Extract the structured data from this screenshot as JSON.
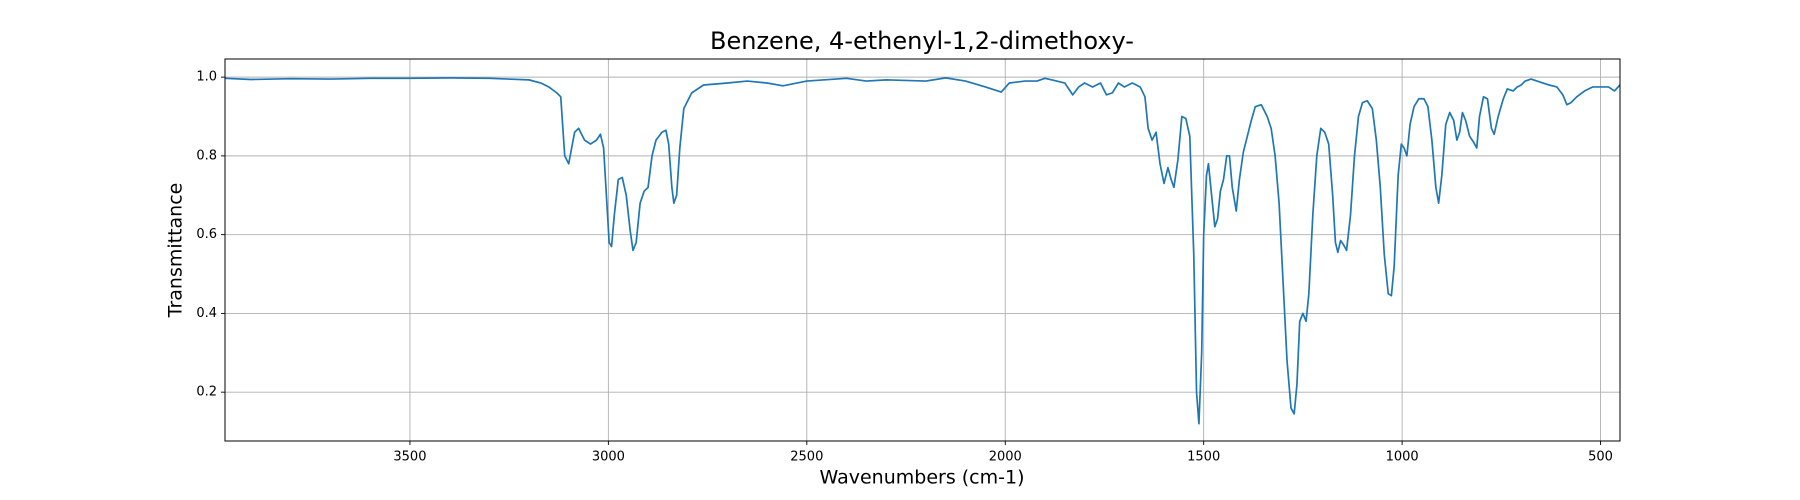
{
  "chart_data": {
    "type": "line",
    "title": "Benzene, 4-ethenyl-1,2-dimethoxy-",
    "xlabel": "Wavenumbers (cm-1)",
    "ylabel": "Transmittance",
    "color": "#1f77b4",
    "grid": true,
    "xlim": [
      3966,
      451
    ],
    "ylim": [
      0.076,
      1.046
    ],
    "xticks": [
      3500,
      3000,
      2500,
      2000,
      1500,
      1000,
      500
    ],
    "yticks": [
      0.2,
      0.4,
      0.6,
      0.8,
      {
        "value": 1,
        "label": "1.0"
      }
    ],
    "x": [
      3966,
      3900,
      3800,
      3700,
      3600,
      3500,
      3400,
      3300,
      3200,
      3170,
      3150,
      3130,
      3120,
      3110,
      3100,
      3085,
      3075,
      3060,
      3045,
      3030,
      3020,
      3012,
      3005,
      2998,
      2992,
      2985,
      2975,
      2965,
      2955,
      2945,
      2938,
      2930,
      2920,
      2910,
      2900,
      2890,
      2880,
      2865,
      2855,
      2848,
      2840,
      2835,
      2828,
      2820,
      2810,
      2790,
      2760,
      2700,
      2650,
      2600,
      2560,
      2500,
      2400,
      2350,
      2300,
      2200,
      2150,
      2100,
      2050,
      2010,
      1990,
      1950,
      1920,
      1900,
      1870,
      1850,
      1830,
      1815,
      1800,
      1780,
      1760,
      1745,
      1730,
      1715,
      1700,
      1680,
      1660,
      1648,
      1640,
      1630,
      1620,
      1610,
      1600,
      1590,
      1582,
      1575,
      1565,
      1555,
      1545,
      1535,
      1525,
      1518,
      1512,
      1505,
      1500,
      1493,
      1488,
      1480,
      1472,
      1465,
      1458,
      1450,
      1442,
      1435,
      1428,
      1418,
      1410,
      1400,
      1390,
      1380,
      1370,
      1355,
      1340,
      1330,
      1320,
      1310,
      1300,
      1290,
      1280,
      1272,
      1265,
      1258,
      1250,
      1242,
      1235,
      1225,
      1215,
      1205,
      1195,
      1185,
      1175,
      1168,
      1162,
      1155,
      1148,
      1140,
      1130,
      1120,
      1110,
      1100,
      1088,
      1075,
      1065,
      1055,
      1045,
      1035,
      1027,
      1020,
      1010,
      1002,
      995,
      988,
      980,
      970,
      958,
      945,
      935,
      925,
      915,
      908,
      900,
      890,
      880,
      870,
      862,
      855,
      848,
      840,
      830,
      820,
      812,
      805,
      795,
      785,
      775,
      768,
      758,
      745,
      735,
      720,
      710,
      700,
      690,
      675,
      660,
      645,
      630,
      610,
      595,
      585,
      575,
      560,
      540,
      520,
      500,
      480,
      465,
      451
    ],
    "values": [
      0.997,
      0.994,
      0.996,
      0.995,
      0.997,
      0.997,
      0.998,
      0.997,
      0.993,
      0.985,
      0.975,
      0.96,
      0.95,
      0.8,
      0.78,
      0.86,
      0.87,
      0.84,
      0.83,
      0.84,
      0.855,
      0.82,
      0.7,
      0.58,
      0.57,
      0.65,
      0.74,
      0.745,
      0.7,
      0.61,
      0.56,
      0.58,
      0.68,
      0.71,
      0.72,
      0.8,
      0.84,
      0.86,
      0.865,
      0.83,
      0.72,
      0.68,
      0.7,
      0.82,
      0.92,
      0.96,
      0.98,
      0.985,
      0.99,
      0.985,
      0.978,
      0.99,
      0.997,
      0.99,
      0.993,
      0.99,
      0.998,
      0.99,
      0.975,
      0.962,
      0.985,
      0.99,
      0.99,
      0.997,
      0.99,
      0.985,
      0.955,
      0.975,
      0.985,
      0.975,
      0.985,
      0.955,
      0.96,
      0.985,
      0.975,
      0.985,
      0.975,
      0.95,
      0.87,
      0.84,
      0.86,
      0.78,
      0.73,
      0.77,
      0.74,
      0.72,
      0.79,
      0.9,
      0.895,
      0.85,
      0.55,
      0.2,
      0.12,
      0.3,
      0.6,
      0.75,
      0.78,
      0.7,
      0.62,
      0.64,
      0.71,
      0.74,
      0.8,
      0.8,
      0.72,
      0.66,
      0.74,
      0.81,
      0.85,
      0.89,
      0.925,
      0.93,
      0.9,
      0.87,
      0.8,
      0.68,
      0.48,
      0.28,
      0.16,
      0.145,
      0.22,
      0.38,
      0.4,
      0.38,
      0.45,
      0.65,
      0.8,
      0.87,
      0.86,
      0.83,
      0.7,
      0.58,
      0.555,
      0.585,
      0.575,
      0.56,
      0.65,
      0.8,
      0.9,
      0.935,
      0.94,
      0.92,
      0.84,
      0.72,
      0.55,
      0.45,
      0.445,
      0.52,
      0.75,
      0.83,
      0.82,
      0.8,
      0.88,
      0.925,
      0.945,
      0.945,
      0.925,
      0.84,
      0.72,
      0.68,
      0.75,
      0.88,
      0.91,
      0.89,
      0.84,
      0.86,
      0.91,
      0.89,
      0.85,
      0.835,
      0.82,
      0.9,
      0.95,
      0.945,
      0.87,
      0.855,
      0.9,
      0.945,
      0.97,
      0.965,
      0.975,
      0.98,
      0.99,
      0.995,
      0.99,
      0.985,
      0.98,
      0.975,
      0.955,
      0.93,
      0.935,
      0.95,
      0.965,
      0.975,
      0.975,
      0.975,
      0.965,
      0.98
    ]
  }
}
